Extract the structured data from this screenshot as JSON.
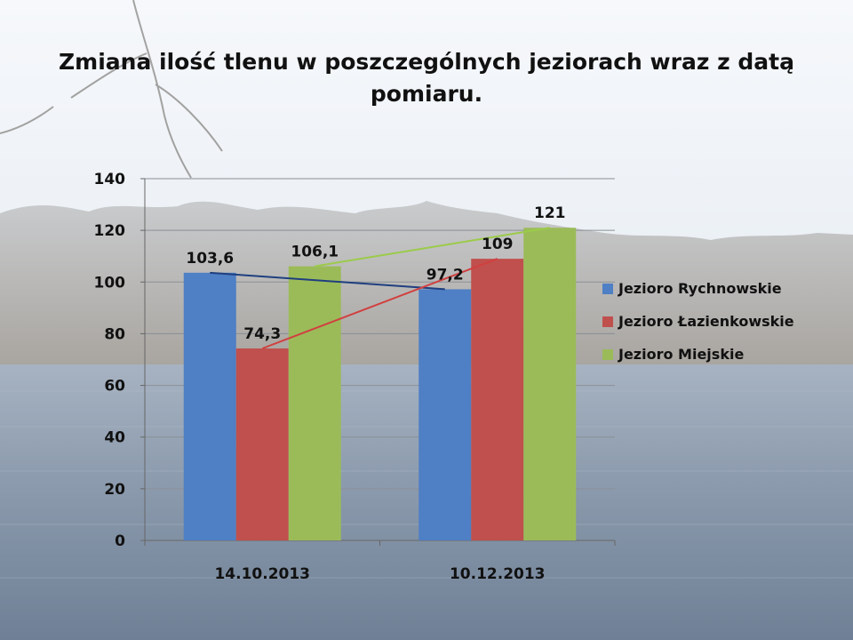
{
  "chart_data": {
    "type": "bar",
    "title": "Zmiana ilość tlenu w poszczególnych jeziorach wraz z datą pomiaru.",
    "title_lines": [
      "Zmiana ilość tlenu w poszczególnych jeziorach wraz z datą",
      "pomiaru."
    ],
    "categories": [
      "14.10.2013",
      "10.12.2013"
    ],
    "series": [
      {
        "name": "Jezioro Rychnowskie",
        "values": [
          103.6,
          97.2
        ],
        "labels": [
          "103,6",
          "97,2"
        ],
        "color": "#4F7FC4"
      },
      {
        "name": "Jezioro Łazienkowskie",
        "values": [
          74.3,
          109
        ],
        "labels": [
          "74,3",
          "109"
        ],
        "color": "#C0504D"
      },
      {
        "name": "Jezioro Miejskie",
        "values": [
          106.1,
          121
        ],
        "labels": [
          "106,1",
          "121"
        ],
        "color": "#9BBB59"
      }
    ],
    "trendlines": true,
    "trend_colors": [
      "#1F3F7F",
      "#D04040",
      "#9BCB49"
    ],
    "ylim": [
      0,
      140
    ],
    "yticks": [
      0,
      20,
      40,
      60,
      80,
      100,
      120,
      140
    ],
    "grid": true,
    "legend_position": "right",
    "xlabel": "",
    "ylabel": ""
  }
}
